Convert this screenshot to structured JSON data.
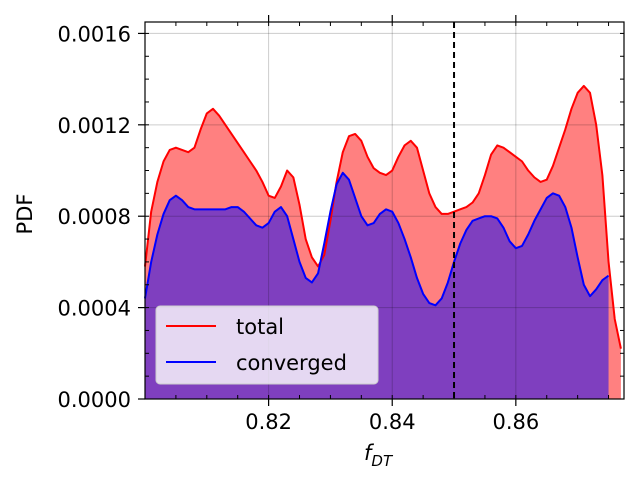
{
  "chart_data": {
    "type": "area",
    "xlabel": "f",
    "xlabel_subscript": "DT",
    "ylabel": "PDF",
    "xlim": [
      0.8,
      0.8775
    ],
    "ylim": [
      0.0,
      0.00165
    ],
    "x_ticks": [
      0.82,
      0.84,
      0.86
    ],
    "x_tick_labels": [
      "0.82",
      "0.84",
      "0.86"
    ],
    "y_ticks": [
      0.0,
      0.0004,
      0.0008,
      0.0012,
      0.0016
    ],
    "y_tick_labels": [
      "0.0000",
      "0.0004",
      "0.0008",
      "0.0012",
      "0.0016"
    ],
    "grid": true,
    "vline_x": 0.85,
    "legend": {
      "placement": "lower-left",
      "entries": [
        {
          "label": "total",
          "color": "#ff0000"
        },
        {
          "label": "converged",
          "color": "#0000ff"
        }
      ]
    },
    "series": [
      {
        "name": "total",
        "line_color": "#ff0000",
        "fill_color": "#ff8080",
        "x": [
          0.8,
          0.801,
          0.802,
          0.803,
          0.804,
          0.805,
          0.806,
          0.807,
          0.808,
          0.809,
          0.81,
          0.811,
          0.812,
          0.813,
          0.814,
          0.815,
          0.816,
          0.817,
          0.818,
          0.819,
          0.82,
          0.821,
          0.822,
          0.823,
          0.824,
          0.825,
          0.826,
          0.827,
          0.828,
          0.829,
          0.83,
          0.831,
          0.832,
          0.833,
          0.834,
          0.835,
          0.836,
          0.837,
          0.838,
          0.839,
          0.84,
          0.841,
          0.842,
          0.843,
          0.844,
          0.845,
          0.846,
          0.847,
          0.848,
          0.849,
          0.85,
          0.851,
          0.852,
          0.853,
          0.854,
          0.855,
          0.856,
          0.857,
          0.858,
          0.859,
          0.86,
          0.861,
          0.862,
          0.863,
          0.864,
          0.865,
          0.866,
          0.867,
          0.868,
          0.869,
          0.87,
          0.871,
          0.872,
          0.873,
          0.874,
          0.875,
          0.876,
          0.877
        ],
        "values": [
          0.00058,
          0.00082,
          0.00095,
          0.00104,
          0.00109,
          0.0011,
          0.00109,
          0.00108,
          0.0011,
          0.00118,
          0.00125,
          0.00127,
          0.00124,
          0.0012,
          0.00116,
          0.00112,
          0.00108,
          0.00104,
          0.001,
          0.00095,
          0.00089,
          0.00088,
          0.00093,
          0.001,
          0.00097,
          0.00085,
          0.0007,
          0.00062,
          0.00058,
          0.00063,
          0.00078,
          0.00095,
          0.00108,
          0.00115,
          0.00116,
          0.00113,
          0.00106,
          0.00101,
          0.00099,
          0.00098,
          0.001,
          0.00106,
          0.00111,
          0.00113,
          0.0011,
          0.001,
          0.0009,
          0.00084,
          0.00081,
          0.00081,
          0.00082,
          0.00083,
          0.00084,
          0.00086,
          0.0009,
          0.00098,
          0.00107,
          0.00111,
          0.0011,
          0.00108,
          0.00106,
          0.00104,
          0.001,
          0.00097,
          0.00095,
          0.00096,
          0.00102,
          0.0011,
          0.00118,
          0.00127,
          0.00134,
          0.00137,
          0.00134,
          0.0012,
          0.00098,
          0.0006,
          0.00035,
          0.00022
        ]
      },
      {
        "name": "converged",
        "line_color": "#0000ff",
        "fill_color": "#7f3fbf",
        "x": [
          0.8,
          0.801,
          0.802,
          0.803,
          0.804,
          0.805,
          0.806,
          0.807,
          0.808,
          0.809,
          0.81,
          0.811,
          0.812,
          0.813,
          0.814,
          0.815,
          0.816,
          0.817,
          0.818,
          0.819,
          0.82,
          0.821,
          0.822,
          0.823,
          0.824,
          0.825,
          0.826,
          0.827,
          0.828,
          0.829,
          0.83,
          0.831,
          0.832,
          0.833,
          0.834,
          0.835,
          0.836,
          0.837,
          0.838,
          0.839,
          0.84,
          0.841,
          0.842,
          0.843,
          0.844,
          0.845,
          0.846,
          0.847,
          0.848,
          0.849,
          0.85,
          0.851,
          0.852,
          0.853,
          0.854,
          0.855,
          0.856,
          0.857,
          0.858,
          0.859,
          0.86,
          0.861,
          0.862,
          0.863,
          0.864,
          0.865,
          0.866,
          0.867,
          0.868,
          0.869,
          0.87,
          0.871,
          0.872,
          0.873,
          0.874,
          0.875
        ],
        "values": [
          0.00044,
          0.0006,
          0.00072,
          0.00081,
          0.00087,
          0.00089,
          0.00087,
          0.00084,
          0.00083,
          0.00083,
          0.00083,
          0.00083,
          0.00083,
          0.00083,
          0.00084,
          0.00084,
          0.00082,
          0.00079,
          0.00076,
          0.00075,
          0.00077,
          0.00082,
          0.00084,
          0.0008,
          0.0007,
          0.0006,
          0.00053,
          0.00051,
          0.00055,
          0.00068,
          0.00082,
          0.00094,
          0.00099,
          0.00096,
          0.00088,
          0.0008,
          0.00076,
          0.00077,
          0.00081,
          0.00083,
          0.00082,
          0.00077,
          0.0007,
          0.00062,
          0.00053,
          0.00046,
          0.00042,
          0.00041,
          0.00044,
          0.00051,
          0.0006,
          0.00068,
          0.00074,
          0.00078,
          0.00079,
          0.0008,
          0.0008,
          0.00079,
          0.00075,
          0.00069,
          0.00066,
          0.00067,
          0.00072,
          0.00078,
          0.00083,
          0.00088,
          0.0009,
          0.00089,
          0.00084,
          0.00075,
          0.00062,
          0.0005,
          0.00045,
          0.00048,
          0.00052,
          0.00054
        ]
      }
    ]
  }
}
